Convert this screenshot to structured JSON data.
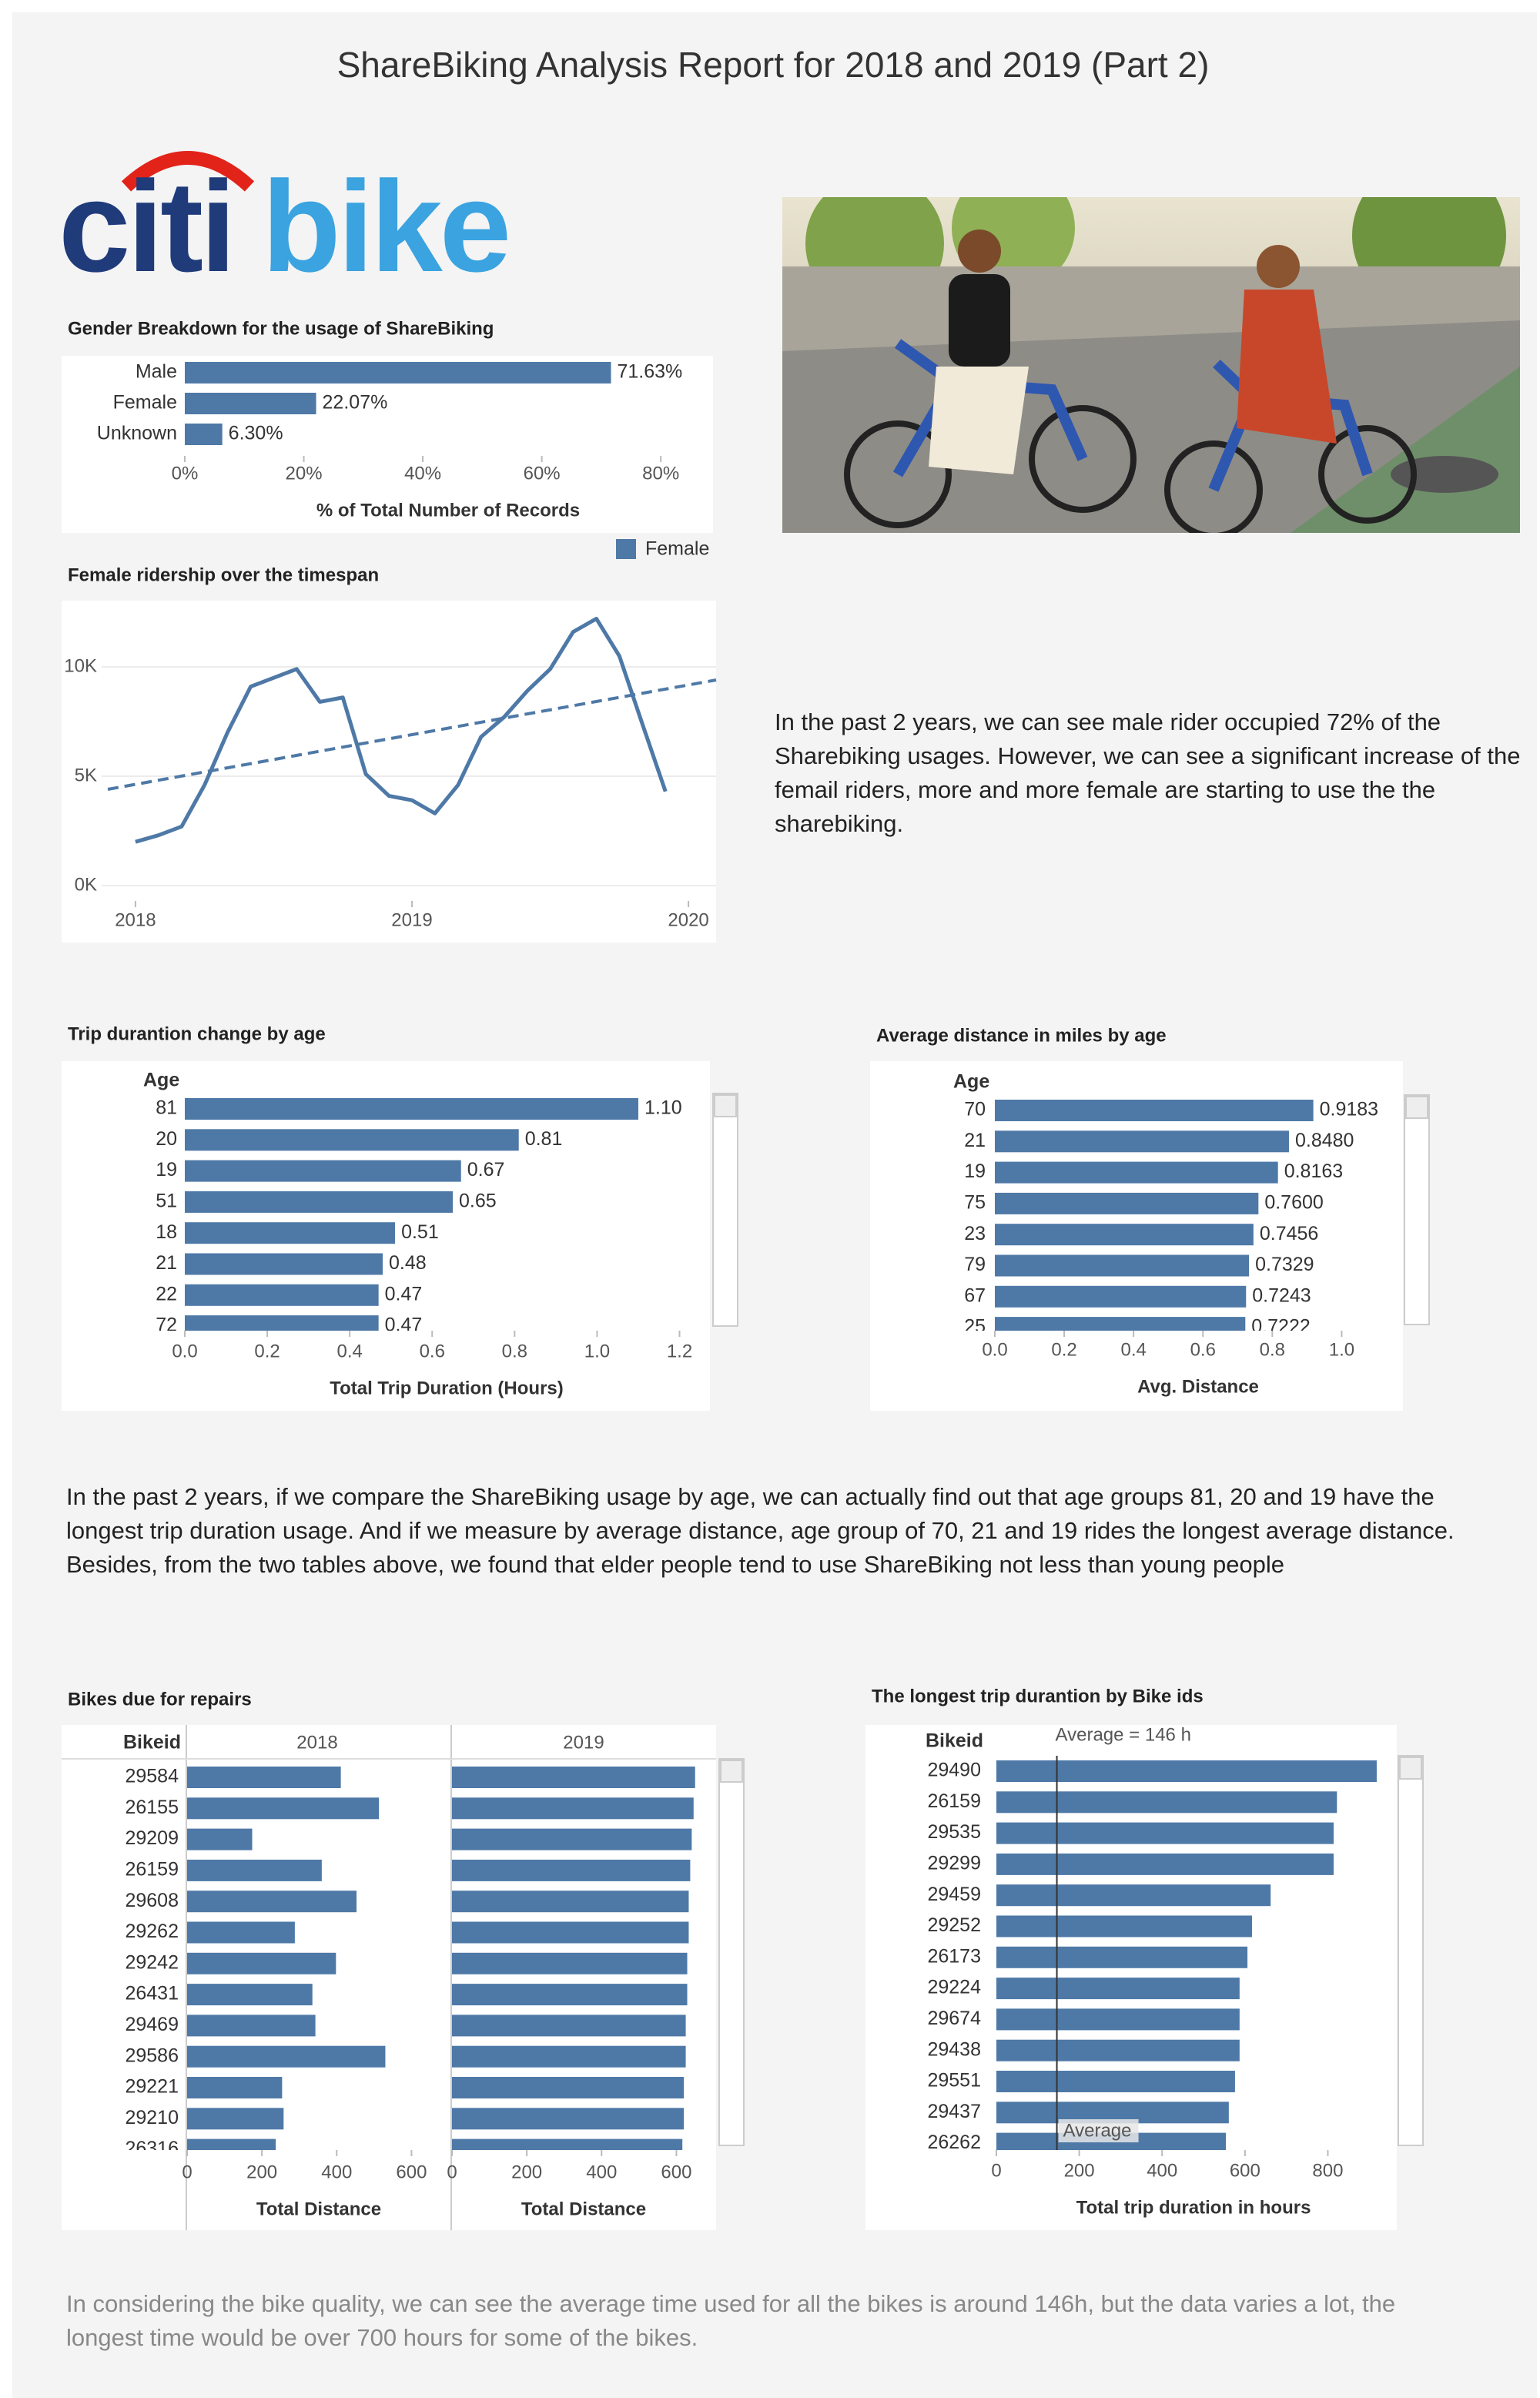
{
  "title": "ShareBiking Analysis Report for 2018 and 2019 (Part 2)",
  "logo": {
    "left": "citi",
    "right": "bike"
  },
  "paragraphs": [
    "In the past 2 years, we can see male rider occupied 72% of the Sharebiking usages. However, we can see a significant increase of the femail riders, more and more female are starting to use the the sharebiking.",
    "In the past 2 years, if we compare the ShareBiking usage by age, we can actually find out that age groups 81, 20 and 19 have the longest trip duration usage. And if we measure by average distance, age group of 70, 21 and 19 rides the longest average distance. Besides, from the two tables above, we found that elder people tend to use ShareBiking not less than young people",
    "In considering the bike quality, we can see the average time used for all the bikes is around 146h, but the data varies a lot, the longest time would be over 700 hours for some of the bikes."
  ],
  "chart_data": [
    {
      "type": "bar",
      "orientation": "horizontal",
      "title": "Gender Breakdown for the usage of ShareBiking",
      "categories": [
        "Male",
        "Female",
        "Unknown"
      ],
      "values": [
        71.63,
        22.07,
        6.3
      ],
      "value_labels": [
        "71.63%",
        "22.07%",
        "6.30%"
      ],
      "color": "#4e79a7",
      "xlim": [
        0,
        88
      ],
      "xticks": [
        {
          "value": 0,
          "label": "0%"
        },
        {
          "value": 20,
          "label": "20%"
        },
        {
          "value": 40,
          "label": "40%"
        },
        {
          "value": 60,
          "label": "60%"
        },
        {
          "value": 80,
          "label": "80%"
        }
      ],
      "xlabel": "% of Total Number of Records"
    },
    {
      "type": "line",
      "title": "Female ridership over the timespan",
      "x": [
        2018,
        2018.083,
        2018.167,
        2018.25,
        2018.333,
        2018.417,
        2018.5,
        2018.583,
        2018.667,
        2018.75,
        2018.833,
        2018.917,
        2019,
        2019.083,
        2019.167,
        2019.25,
        2019.333,
        2019.417,
        2019.5,
        2019.583,
        2019.667,
        2019.75,
        2019.833,
        2019.917
      ],
      "series": [
        {
          "name": "Female",
          "color": "#4e79a7",
          "values": [
            2000,
            2300,
            2700,
            4600,
            7000,
            9100,
            9500,
            9900,
            8400,
            8600,
            5100,
            4100,
            3900,
            3300,
            4600,
            6800,
            7700,
            8900,
            9900,
            11600,
            12200,
            10500,
            7400,
            4300
          ]
        }
      ],
      "trendline": {
        "x": [
          2017.9,
          2020.1
        ],
        "values": [
          4400,
          9400
        ]
      },
      "xlim": [
        2017.9,
        2020.1
      ],
      "xticks": [
        2018,
        2019,
        2020
      ],
      "ylim": [
        0,
        12900
      ],
      "yticks": [
        {
          "value": 0,
          "label": "0K"
        },
        {
          "value": 5000,
          "label": "5K"
        },
        {
          "value": 10000,
          "label": "10K"
        }
      ],
      "grid": true,
      "legend": "top-right"
    },
    {
      "type": "bar",
      "orientation": "horizontal",
      "title": "Trip durantion change by age",
      "category_label": "Age",
      "categories": [
        "81",
        "20",
        "19",
        "51",
        "18",
        "21",
        "22",
        "72"
      ],
      "values": [
        1.1,
        0.81,
        0.67,
        0.65,
        0.51,
        0.48,
        0.47,
        0.47
      ],
      "value_labels": [
        "1.10",
        "0.81",
        "0.67",
        "0.65",
        "0.51",
        "0.48",
        "0.47",
        "0.47"
      ],
      "color": "#4e79a7",
      "xlim": [
        0,
        1.27
      ],
      "xticks": [
        {
          "value": 0,
          "label": "0.0"
        },
        0.2,
        0.4,
        0.6,
        0.8,
        {
          "value": 1,
          "label": "1.0"
        },
        1.2
      ],
      "xlabel": "Total Trip Duration (Hours)"
    },
    {
      "type": "bar",
      "orientation": "horizontal",
      "title": "Average distance in miles by age",
      "category_label": "Age",
      "categories": [
        "70",
        "21",
        "19",
        "75",
        "23",
        "79",
        "67",
        "25"
      ],
      "values": [
        0.9183,
        0.848,
        0.8163,
        0.76,
        0.7456,
        0.7329,
        0.7243,
        0.7222
      ],
      "value_labels": [
        "0.9183",
        "0.8480",
        "0.8163",
        "0.7600",
        "0.7456",
        "0.7329",
        "0.7243",
        "0.7222"
      ],
      "color": "#4e79a7",
      "xlim": [
        0,
        1.15
      ],
      "xticks": [
        {
          "value": 0,
          "label": "0.0"
        },
        0.2,
        0.4,
        0.6,
        0.8,
        {
          "value": 1,
          "label": "1.0"
        }
      ],
      "xlabel": "Avg. Distance"
    },
    {
      "type": "bar",
      "orientation": "horizontal",
      "title": "Bikes due for repairs",
      "category_label": "Bikeid",
      "categories": [
        "29584",
        "26155",
        "29209",
        "26159",
        "29608",
        "29262",
        "29242",
        "26431",
        "29469",
        "29586",
        "29221",
        "29210",
        "26316"
      ],
      "series": [
        {
          "name": "2018",
          "values": [
            411,
            513,
            174,
            360,
            453,
            288,
            398,
            335,
            343,
            530,
            254,
            258,
            237
          ]
        },
        {
          "name": "2019",
          "values": [
            650,
            646,
            641,
            637,
            633,
            633,
            629,
            629,
            625,
            625,
            620,
            620,
            616
          ]
        }
      ],
      "color": "#4e79a7",
      "xlim": [
        0,
        700
      ],
      "xticks": [
        0,
        200,
        400,
        600
      ],
      "xlabel": "Total Distance"
    },
    {
      "type": "bar",
      "orientation": "horizontal",
      "title": "The longest trip durantion by Bike ids",
      "category_label": "Bikeid",
      "categories": [
        "29490",
        "26159",
        "29535",
        "29299",
        "29459",
        "29252",
        "26173",
        "29224",
        "29674",
        "29438",
        "29551",
        "29437",
        "26262"
      ],
      "values": [
        918,
        822,
        814,
        814,
        662,
        617,
        606,
        587,
        587,
        587,
        576,
        561,
        554
      ],
      "color": "#4e79a7",
      "xlim": [
        0,
        959
      ],
      "xticks": [
        0,
        200,
        400,
        600,
        800
      ],
      "xlabel": "Total trip duration in hours",
      "reference_line": {
        "value": 146,
        "label": "Average = 146 h",
        "short_label": "Average"
      }
    }
  ]
}
